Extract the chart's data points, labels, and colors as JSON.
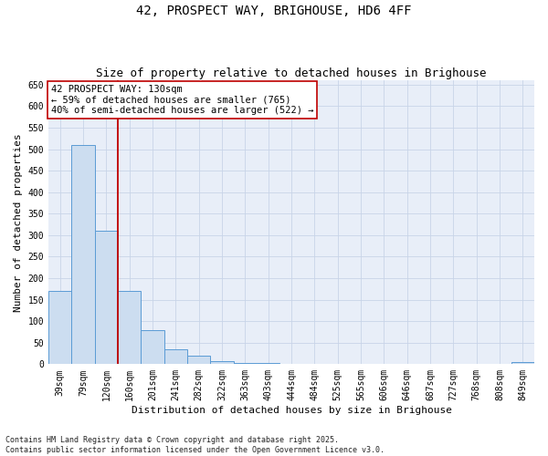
{
  "title1": "42, PROSPECT WAY, BRIGHOUSE, HD6 4FF",
  "title2": "Size of property relative to detached houses in Brighouse",
  "xlabel": "Distribution of detached houses by size in Brighouse",
  "ylabel": "Number of detached properties",
  "footer1": "Contains HM Land Registry data © Crown copyright and database right 2025.",
  "footer2": "Contains public sector information licensed under the Open Government Licence v3.0.",
  "bins": [
    "39sqm",
    "79sqm",
    "120sqm",
    "160sqm",
    "201sqm",
    "241sqm",
    "282sqm",
    "322sqm",
    "363sqm",
    "403sqm",
    "444sqm",
    "484sqm",
    "525sqm",
    "565sqm",
    "606sqm",
    "646sqm",
    "687sqm",
    "727sqm",
    "768sqm",
    "808sqm",
    "849sqm"
  ],
  "values": [
    170,
    510,
    310,
    170,
    80,
    35,
    20,
    7,
    3,
    2,
    1,
    1,
    0,
    0,
    0,
    0,
    0,
    0,
    0,
    0,
    5
  ],
  "bar_color": "#ccddf0",
  "bar_edge_color": "#5b9bd5",
  "vline_color": "#c00000",
  "vline_bin_index": 2,
  "annotation_line1": "42 PROSPECT WAY: 130sqm",
  "annotation_line2": "← 59% of detached houses are smaller (765)",
  "annotation_line3": "40% of semi-detached houses are larger (522) →",
  "ylim": [
    0,
    660
  ],
  "yticks": [
    0,
    50,
    100,
    150,
    200,
    250,
    300,
    350,
    400,
    450,
    500,
    550,
    600,
    650
  ],
  "grid_color": "#c8d4e8",
  "bg_color": "#e8eef8",
  "title_fontsize": 10,
  "subtitle_fontsize": 9,
  "axis_label_fontsize": 8,
  "tick_fontsize": 7,
  "ann_fontsize": 7.5,
  "footer_fontsize": 6
}
